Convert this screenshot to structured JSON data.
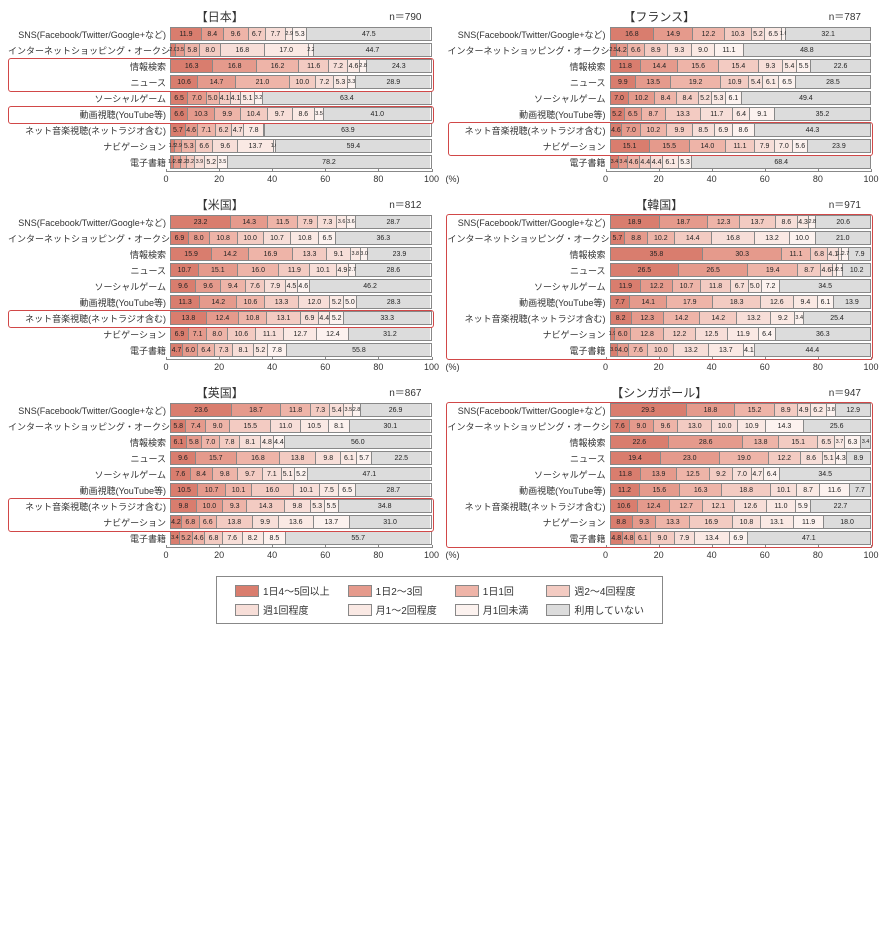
{
  "colors": {
    "series": [
      "#d97d6e",
      "#e59a8c",
      "#eeb4a8",
      "#f3cbc2",
      "#f7ded8",
      "#fae9e4",
      "#fcf2ef",
      "#dcdcdc"
    ],
    "highlight": "#d14848",
    "axis": "#888888",
    "background": "#ffffff",
    "text": "#333333"
  },
  "axis": {
    "ticks": [
      0,
      20,
      40,
      60,
      80,
      100
    ],
    "unit": "(%)"
  },
  "legend": [
    "1日4～5回以上",
    "1日2～3回",
    "1日1回",
    "週2～4回程度",
    "週1回程度",
    "月1～2回程度",
    "月1回未満",
    "利用していない"
  ],
  "categories": [
    "SNS(Facebook/Twitter/Google+など)",
    "インターネットショッピング・オークション",
    "情報検索",
    "ニュース",
    "ソーシャルゲーム",
    "動画視聴(YouTube等)",
    "ネット音楽視聴(ネットラジオ含む)",
    "ナビゲーション",
    "電子書籍"
  ],
  "panels": [
    {
      "title": "【日本】",
      "n": "n＝790",
      "highlight": {
        "rows": [
          2,
          3,
          5
        ]
      },
      "rows": [
        [
          11.9,
          8.4,
          9.6,
          6.7,
          7.7,
          2.9,
          5.3,
          47.5
        ],
        [
          2.0,
          3.5,
          5.8,
          8.0,
          16.8,
          17.0,
          2.2,
          44.7
        ],
        [
          16.3,
          16.8,
          16.2,
          11.6,
          7.2,
          4.6,
          2.8,
          24.3
        ],
        [
          10.6,
          14.7,
          21.0,
          10.0,
          7.2,
          5.3,
          3.3,
          28.9
        ],
        [
          6.5,
          7.0,
          5.0,
          4.1,
          4.1,
          5.1,
          3.2,
          63.4
        ],
        [
          6.6,
          10.3,
          9.9,
          10.4,
          9.7,
          8.6,
          3.5,
          41.0
        ],
        [
          5.7,
          4.6,
          7.1,
          6.2,
          4.7,
          7.8,
          0.0,
          63.9
        ],
        [
          1.5,
          2.9,
          5.3,
          6.6,
          9.6,
          13.7,
          1.0,
          59.4
        ],
        [
          1.0,
          2.8,
          2.2,
          3.2,
          3.9,
          5.2,
          3.5,
          78.2
        ]
      ]
    },
    {
      "title": "【フランス】",
      "n": "n＝787",
      "highlight": {
        "rows": [
          6,
          7
        ]
      },
      "rows": [
        [
          16.8,
          14.9,
          12.2,
          10.3,
          5.2,
          6.5,
          1.6,
          32.1
        ],
        [
          2.5,
          4.2,
          6.6,
          8.9,
          9.3,
          9.0,
          11.1,
          48.8
        ],
        [
          11.8,
          14.4,
          15.6,
          15.4,
          9.3,
          5.4,
          5.5,
          22.6
        ],
        [
          9.9,
          13.5,
          19.2,
          10.9,
          5.4,
          6.1,
          6.5,
          28.5
        ],
        [
          7.0,
          10.2,
          8.4,
          8.4,
          5.2,
          5.3,
          6.1,
          49.4
        ],
        [
          5.2,
          6.5,
          8.7,
          13.3,
          11.7,
          6.4,
          9.1,
          35.2
        ],
        [
          4.6,
          7.0,
          10.2,
          9.9,
          8.5,
          6.9,
          8.6,
          44.3
        ],
        [
          15.1,
          15.5,
          14.0,
          11.1,
          7.9,
          7.0,
          5.6,
          23.9
        ],
        [
          3.4,
          3.4,
          4.6,
          4.4,
          4.4,
          6.1,
          5.3,
          68.4
        ]
      ]
    },
    {
      "title": "【米国】",
      "n": "n＝812",
      "highlight": {
        "rows": [
          6
        ]
      },
      "rows": [
        [
          23.2,
          14.3,
          11.5,
          7.9,
          7.3,
          3.6,
          3.6,
          28.7
        ],
        [
          6.9,
          8.0,
          10.8,
          10.0,
          10.7,
          10.8,
          6.5,
          36.3
        ],
        [
          15.9,
          14.2,
          16.9,
          13.3,
          9.1,
          3.8,
          3.0,
          23.9
        ],
        [
          10.7,
          15.1,
          16.0,
          11.9,
          10.1,
          4.9,
          2.7,
          28.6
        ],
        [
          9.6,
          9.6,
          9.4,
          7.6,
          7.9,
          4.5,
          4.6,
          46.2
        ],
        [
          11.3,
          14.2,
          10.6,
          13.3,
          12.0,
          5.2,
          5.0,
          28.3
        ],
        [
          13.8,
          12.4,
          10.8,
          13.1,
          6.9,
          4.4,
          5.2,
          33.3
        ],
        [
          6.9,
          7.1,
          8.0,
          10.6,
          11.1,
          12.7,
          12.4,
          31.2
        ],
        [
          4.7,
          6.0,
          6.4,
          7.3,
          8.1,
          5.2,
          7.8,
          55.8
        ]
      ]
    },
    {
      "title": "【韓国】",
      "n": "n＝971",
      "highlight": {
        "rows": [
          0,
          1,
          2,
          3,
          4,
          5,
          6,
          7,
          8
        ],
        "full": true
      },
      "rows": [
        [
          18.9,
          18.7,
          12.3,
          13.7,
          8.6,
          4.3,
          2.8,
          20.6
        ],
        [
          5.7,
          8.8,
          10.2,
          14.4,
          16.8,
          13.2,
          10.0,
          21.0
        ],
        [
          35.8,
          30.3,
          11.1,
          6.8,
          4.1,
          1.3,
          2.7,
          7.9
        ],
        [
          26.5,
          26.5,
          19.4,
          8.7,
          4.6,
          1.6,
          2.5,
          10.2
        ],
        [
          11.9,
          12.2,
          10.7,
          11.8,
          6.7,
          5.0,
          7.2,
          34.5
        ],
        [
          7.7,
          14.1,
          17.9,
          18.3,
          12.6,
          9.4,
          6.1,
          13.9
        ],
        [
          8.2,
          12.3,
          14.2,
          14.2,
          13.2,
          9.2,
          3.4,
          25.4
        ],
        [
          1.9,
          6.0,
          12.8,
          12.2,
          12.5,
          11.9,
          6.4,
          36.3
        ],
        [
          3.0,
          4.0,
          7.6,
          10.0,
          13.2,
          13.7,
          4.1,
          44.4
        ]
      ]
    },
    {
      "title": "【英国】",
      "n": "n＝867",
      "highlight": {
        "rows": [
          6,
          7
        ]
      },
      "rows": [
        [
          23.6,
          18.7,
          11.8,
          7.3,
          5.4,
          3.5,
          2.8,
          26.9
        ],
        [
          5.8,
          7.4,
          9.0,
          15.5,
          11.0,
          10.5,
          8.1,
          30.1
        ],
        [
          6.1,
          5.8,
          7.0,
          7.8,
          8.1,
          4.8,
          4.4,
          56.0
        ],
        [
          9.6,
          15.7,
          16.8,
          13.8,
          9.8,
          6.1,
          5.7,
          22.5
        ],
        [
          7.6,
          8.4,
          9.8,
          9.7,
          7.1,
          5.1,
          5.2,
          47.1
        ],
        [
          10.5,
          10.7,
          10.1,
          16.0,
          10.1,
          7.5,
          6.5,
          28.7
        ],
        [
          9.8,
          10.0,
          9.3,
          14.3,
          9.8,
          5.3,
          5.5,
          34.8
        ],
        [
          4.2,
          6.8,
          6.6,
          13.8,
          9.9,
          13.6,
          13.7,
          31.0
        ],
        [
          3.4,
          5.2,
          4.6,
          6.8,
          7.6,
          8.2,
          8.5,
          55.7
        ]
      ]
    },
    {
      "title": "【シンガポール】",
      "n": "n＝947",
      "highlight": {
        "rows": [
          0,
          1,
          2,
          3,
          4,
          5,
          6,
          7,
          8
        ],
        "full": true
      },
      "rows": [
        [
          29.3,
          18.8,
          15.2,
          8.9,
          4.9,
          6.2,
          3.8,
          12.9
        ],
        [
          7.6,
          9.0,
          9.6,
          13.0,
          10.0,
          10.9,
          14.3,
          25.6
        ],
        [
          22.6,
          28.6,
          13.8,
          15.1,
          6.5,
          3.7,
          6.3,
          3.4
        ],
        [
          19.4,
          23.0,
          19.0,
          12.2,
          8.6,
          5.1,
          4.3,
          8.9
        ],
        [
          11.8,
          13.9,
          12.5,
          9.2,
          7.0,
          4.7,
          6.4,
          34.5
        ],
        [
          11.2,
          15.6,
          16.3,
          18.8,
          10.1,
          8.7,
          11.6,
          7.7
        ],
        [
          10.6,
          12.4,
          12.7,
          12.1,
          12.6,
          11.0,
          5.9,
          22.7
        ],
        [
          8.8,
          9.3,
          13.3,
          16.9,
          10.8,
          13.1,
          11.9,
          18.0
        ],
        [
          4.8,
          4.8,
          6.1,
          9.0,
          7.9,
          13.4,
          6.9,
          47.1
        ]
      ]
    }
  ]
}
